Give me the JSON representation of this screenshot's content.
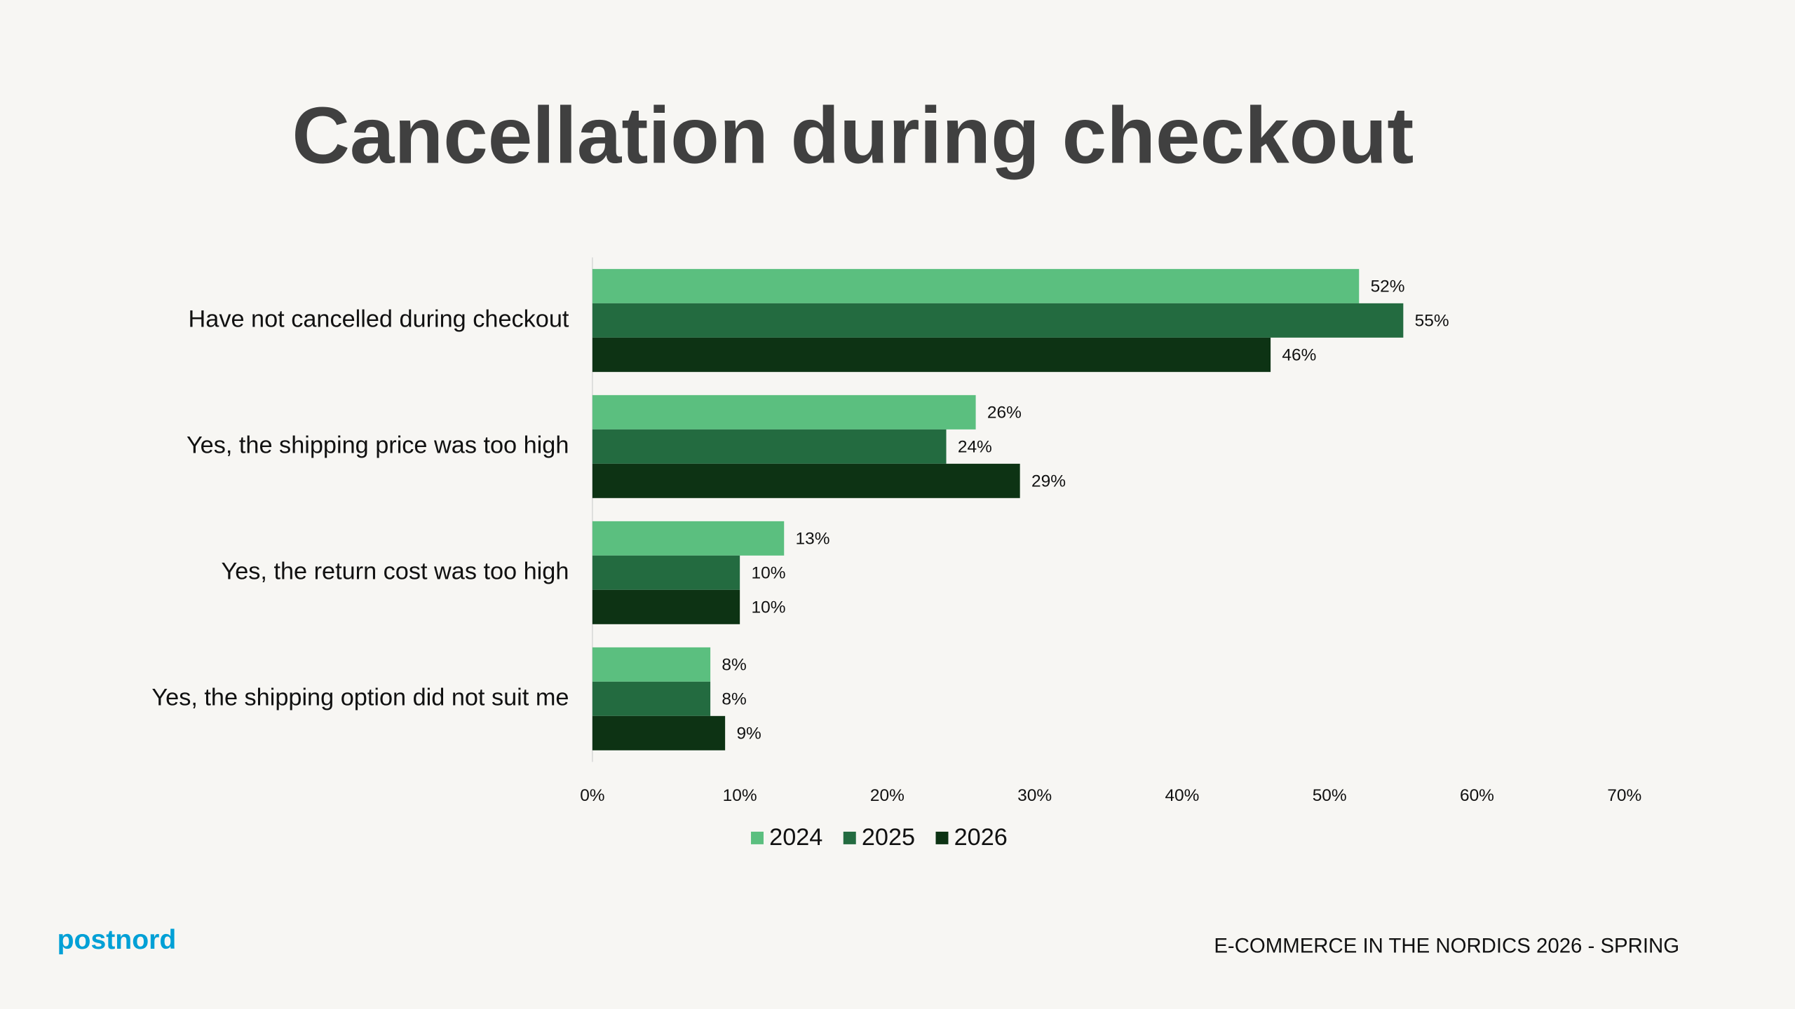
{
  "chart_data": {
    "type": "bar",
    "horizontal": true,
    "title": "Cancellation during checkout",
    "categories": [
      "Have not cancelled during checkout",
      "Yes, the shipping price was too high",
      "Yes, the return cost was too high",
      "Yes, the shipping option did not suit me"
    ],
    "series": [
      {
        "name": "2024",
        "color": "#5bbf7f",
        "values": [
          52,
          26,
          13,
          8
        ],
        "value_labels": [
          "52%",
          "26%",
          "13%",
          "8%"
        ]
      },
      {
        "name": "2025",
        "color": "#236b40",
        "values": [
          55,
          24,
          10,
          8
        ],
        "value_labels": [
          "55%",
          "24%",
          "10%",
          "8%"
        ]
      },
      {
        "name": "2026",
        "color": "#0d3314",
        "values": [
          46,
          29,
          10,
          9
        ],
        "value_labels": [
          "46%",
          "29%",
          "10%",
          "9%"
        ]
      }
    ],
    "xlim": [
      0,
      70
    ],
    "xticks": [
      {
        "value": 0,
        "label": "0%"
      },
      {
        "value": 10,
        "label": "10%"
      },
      {
        "value": 20,
        "label": "20%"
      },
      {
        "value": 30,
        "label": "30%"
      },
      {
        "value": 40,
        "label": "40%"
      },
      {
        "value": 50,
        "label": "50%"
      },
      {
        "value": 60,
        "label": "60%"
      },
      {
        "value": 70,
        "label": "70%"
      }
    ],
    "grid": false,
    "legend": "bottom"
  },
  "footer": {
    "brand": "postnord",
    "text": "E-COMMERCE IN THE NORDICS 2026 - SPRING"
  }
}
